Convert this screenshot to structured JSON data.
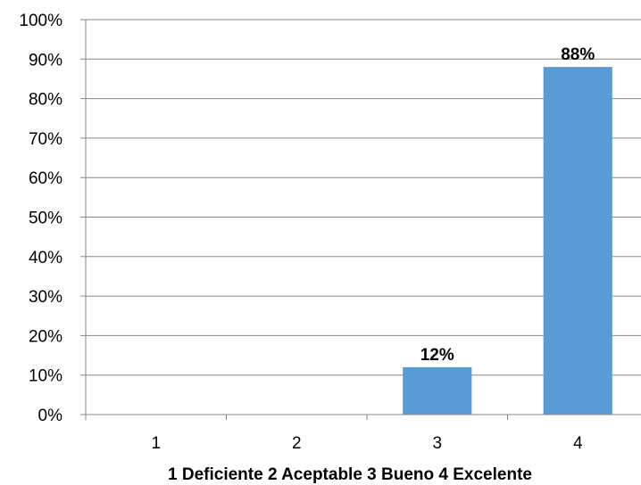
{
  "chart_data": {
    "type": "bar",
    "categories": [
      "1",
      "2",
      "3",
      "4"
    ],
    "values": [
      0,
      0,
      12,
      88
    ],
    "data_labels": [
      "",
      "",
      "12%",
      "88%"
    ],
    "value_unit": "%",
    "ylim": [
      0,
      100
    ],
    "y_ticks": [
      0,
      10,
      20,
      30,
      40,
      50,
      60,
      70,
      80,
      90,
      100
    ],
    "y_tick_labels": [
      "0%",
      "10%",
      "20%",
      "30%",
      "40%",
      "50%",
      "60%",
      "70%",
      "80%",
      "90%",
      "100%"
    ],
    "xlabel": "1 Deficiente 2 Aceptable 3 Bueno 4 Excelente",
    "ylabel": "",
    "title": "",
    "grid": true,
    "legend": "none",
    "colors": {
      "bar": "#5B9BD5",
      "grid": "#868686",
      "axis": "#868686"
    }
  }
}
